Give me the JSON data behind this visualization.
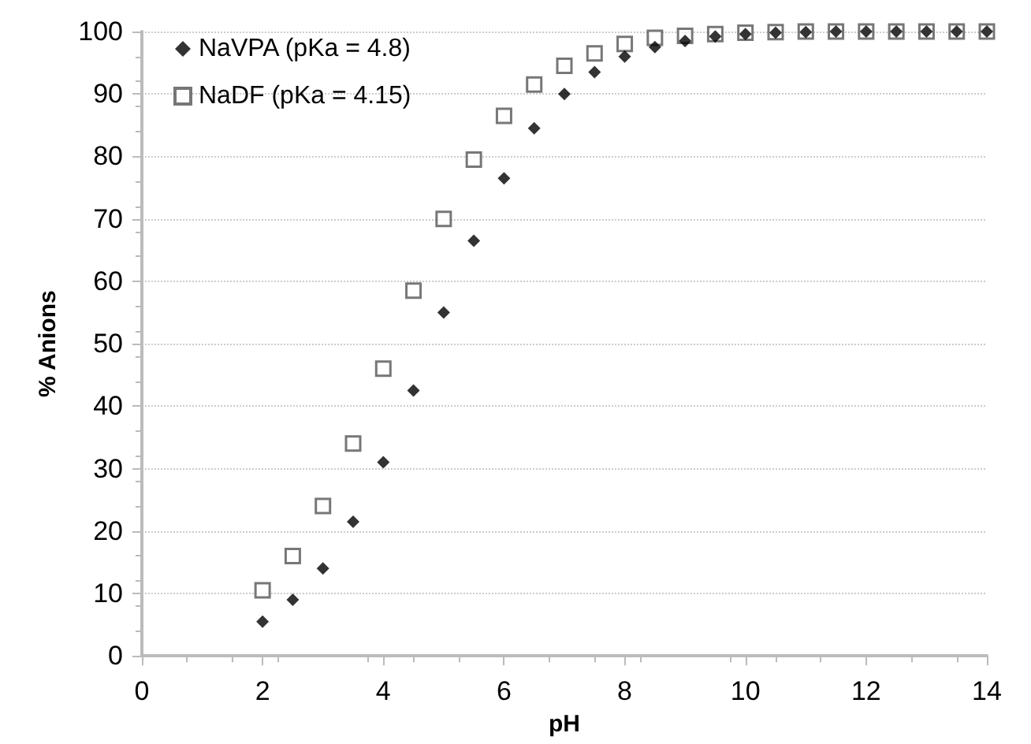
{
  "chart_data": {
    "type": "scatter",
    "xlabel": "pH",
    "ylabel": "% Anions",
    "x": [
      2,
      2.5,
      3,
      3.5,
      4,
      4.5,
      5,
      5.5,
      6,
      6.5,
      7,
      7.5,
      8,
      8.5,
      9,
      9.5,
      10,
      10.5,
      11,
      11.5,
      12,
      12.5,
      13,
      13.5,
      14
    ],
    "series": [
      {
        "name": "NaVPA (pKa = 4.8)",
        "color": "#000000",
        "marker": "diamond",
        "values": [
          5.5,
          9,
          14,
          21.5,
          31,
          42.5,
          55,
          66.5,
          76.5,
          84.5,
          90,
          93.5,
          96,
          97.5,
          98.5,
          99.2,
          99.6,
          99.8,
          99.9,
          100,
          100,
          100,
          100,
          100,
          100
        ]
      },
      {
        "name": "NaDF (pKa = 4.15)",
        "color": "#555555",
        "marker": "square",
        "values": [
          10.5,
          16,
          24,
          34,
          46,
          58.5,
          70,
          79.5,
          86.5,
          91.5,
          94.5,
          96.5,
          98,
          99,
          99.3,
          99.6,
          99.8,
          99.9,
          100,
          100,
          100,
          100,
          100,
          100,
          100
        ]
      }
    ],
    "xlim": [
      0,
      14
    ],
    "xticks": [
      0,
      2,
      4,
      6,
      8,
      10,
      12,
      14
    ],
    "ylim": [
      0,
      100
    ],
    "yticks": [
      0,
      10,
      20,
      30,
      40,
      50,
      60,
      70,
      80,
      90,
      100
    ],
    "grid": "y",
    "legend": "top left"
  }
}
